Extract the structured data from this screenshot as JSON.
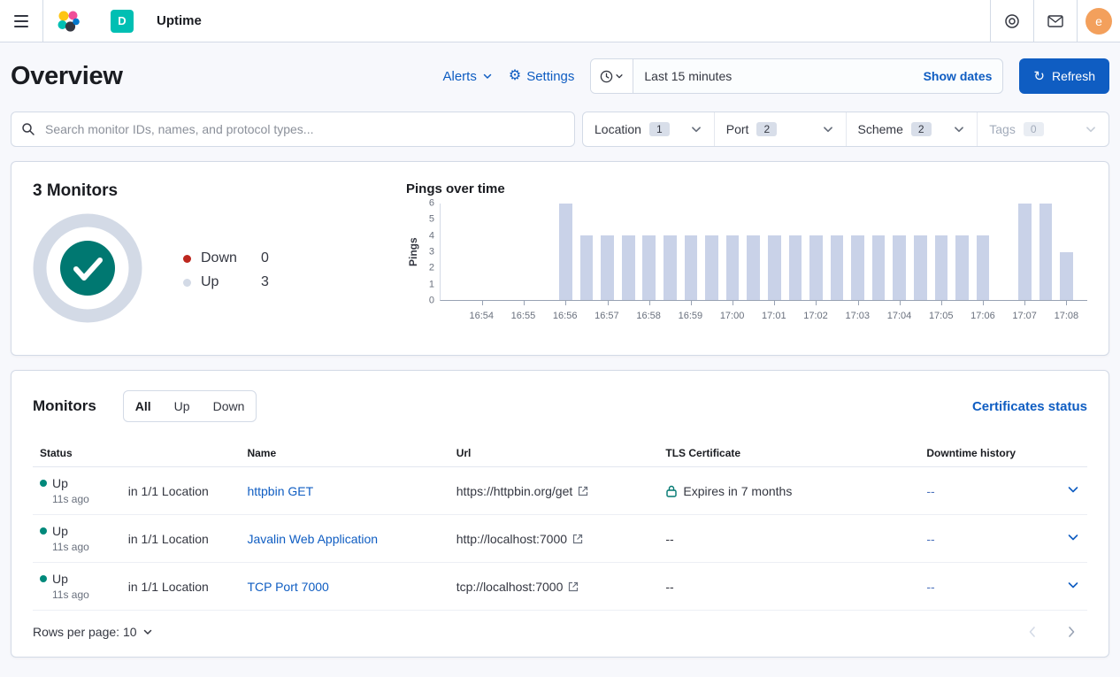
{
  "topbar": {
    "breadcrumb": "Uptime",
    "deployment_badge": "D",
    "avatar_initial": "e"
  },
  "header": {
    "title": "Overview",
    "alerts_label": "Alerts",
    "settings_label": "Settings",
    "timepicker_value": "Last 15 minutes",
    "show_dates_label": "Show dates",
    "refresh_label": "Refresh"
  },
  "filter_bar": {
    "search_placeholder": "Search monitor IDs, names, and protocol types...",
    "filters": [
      {
        "label": "Location",
        "count": "1"
      },
      {
        "label": "Port",
        "count": "2"
      },
      {
        "label": "Scheme",
        "count": "2"
      },
      {
        "label": "Tags",
        "count": "0",
        "disabled": true
      }
    ]
  },
  "snapshot": {
    "title": "3 Monitors",
    "legend": [
      {
        "label": "Down",
        "value": "0",
        "color": "#bd271e"
      },
      {
        "label": "Up",
        "value": "3",
        "color": "#d3dae6"
      }
    ]
  },
  "chart_data": {
    "type": "bar",
    "title": "Pings over time",
    "ylabel": "Pings",
    "ylim": [
      0,
      6
    ],
    "yticks": [
      0,
      1,
      2,
      3,
      4,
      5,
      6
    ],
    "x_domain": [
      "16:53:00",
      "17:08:30"
    ],
    "xticks": [
      "16:54",
      "16:55",
      "16:56",
      "16:57",
      "16:58",
      "16:59",
      "17:00",
      "17:01",
      "17:02",
      "17:03",
      "17:04",
      "17:05",
      "17:06",
      "17:07",
      "17:08"
    ],
    "bucket_seconds": 30,
    "bar_color": "#c9d2e8",
    "bars": [
      {
        "t": "16:56:00",
        "v": 6
      },
      {
        "t": "16:56:30",
        "v": 4
      },
      {
        "t": "16:57:00",
        "v": 4
      },
      {
        "t": "16:57:30",
        "v": 4
      },
      {
        "t": "16:58:00",
        "v": 4
      },
      {
        "t": "16:58:30",
        "v": 4
      },
      {
        "t": "16:59:00",
        "v": 4
      },
      {
        "t": "16:59:30",
        "v": 4
      },
      {
        "t": "17:00:00",
        "v": 4
      },
      {
        "t": "17:00:30",
        "v": 4
      },
      {
        "t": "17:01:00",
        "v": 4
      },
      {
        "t": "17:01:30",
        "v": 4
      },
      {
        "t": "17:02:00",
        "v": 4
      },
      {
        "t": "17:02:30",
        "v": 4
      },
      {
        "t": "17:03:00",
        "v": 4
      },
      {
        "t": "17:03:30",
        "v": 4
      },
      {
        "t": "17:04:00",
        "v": 4
      },
      {
        "t": "17:04:30",
        "v": 4
      },
      {
        "t": "17:05:00",
        "v": 4
      },
      {
        "t": "17:05:30",
        "v": 4
      },
      {
        "t": "17:06:00",
        "v": 4
      },
      {
        "t": "17:07:00",
        "v": 6
      },
      {
        "t": "17:07:30",
        "v": 6
      },
      {
        "t": "17:08:00",
        "v": 3
      }
    ]
  },
  "monitors": {
    "title": "Monitors",
    "tabs": [
      "All",
      "Up",
      "Down"
    ],
    "active_tab": "All",
    "certificates_link": "Certificates status",
    "columns": [
      "Status",
      "Name",
      "Url",
      "TLS Certificate",
      "Downtime history"
    ],
    "rows": [
      {
        "status": "Up",
        "ago": "11s ago",
        "location": "in 1/1 Location",
        "name": "httpbin GET",
        "url": "https://httpbin.org/get",
        "tls": "Expires in 7 months",
        "downtime": "--"
      },
      {
        "status": "Up",
        "ago": "11s ago",
        "location": "in 1/1 Location",
        "name": "Javalin Web Application",
        "url": "http://localhost:7000",
        "tls": "--",
        "downtime": "--"
      },
      {
        "status": "Up",
        "ago": "11s ago",
        "location": "in 1/1 Location",
        "name": "TCP Port 7000",
        "url": "tcp://localhost:7000",
        "tls": "--",
        "downtime": "--"
      }
    ],
    "rows_per_page_label": "Rows per page: 10"
  }
}
